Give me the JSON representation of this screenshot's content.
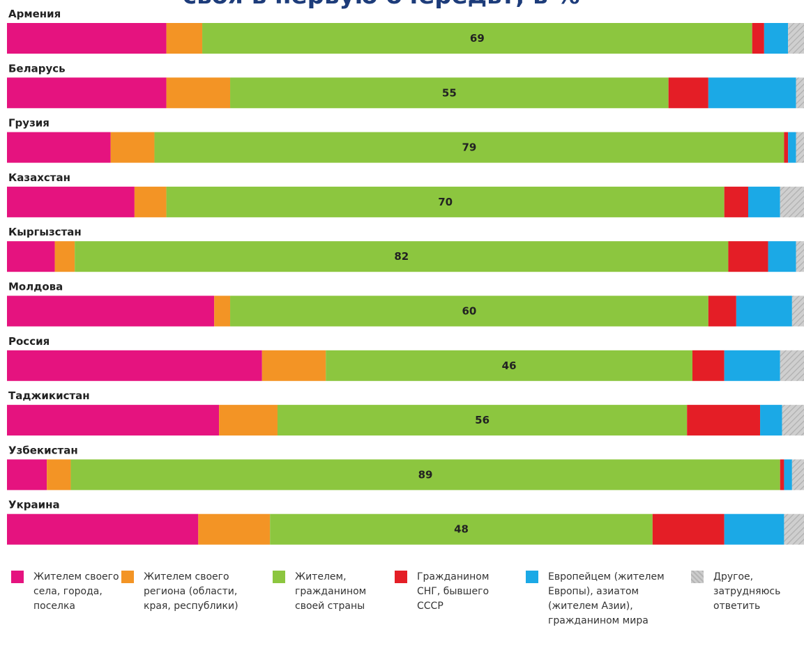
{
  "title": "своя в первую очередь?, в %",
  "chart_data": {
    "type": "bar",
    "orientation": "horizontal",
    "stacked": true,
    "normalized": true,
    "categories": [
      "Армения",
      "Беларусь",
      "Грузия",
      "Казахстан",
      "Кыргызстан",
      "Молдова",
      "Россия",
      "Таджикистан",
      "Узбекистан",
      "Украина"
    ],
    "series": [
      {
        "name": "Жителем своего села, города, поселка",
        "color": "#e5137f",
        "values": [
          20,
          20,
          13,
          16,
          6,
          26,
          32,
          29,
          5,
          24
        ]
      },
      {
        "name": "Жителем своего региона (области, края, республики)",
        "color": "#f39425",
        "values": [
          4.5,
          8,
          5.5,
          4,
          2.5,
          2,
          8,
          8,
          3,
          9
        ]
      },
      {
        "name": "Жителем, гражданином своей страны",
        "color": "#8cc63f",
        "values": [
          69,
          55,
          79,
          70,
          82,
          60,
          46,
          56,
          89,
          48
        ]
      },
      {
        "name": "Гражданином СНГ, бывшего СССР",
        "color": "#e41e26",
        "values": [
          1.5,
          5,
          0.5,
          3,
          5,
          3.5,
          4,
          10,
          0.5,
          9
        ]
      },
      {
        "name": "Европейцем (жителем Европы), азиатом (жителем Азии), гражданином мира",
        "color": "#1ba9e6",
        "values": [
          3,
          11,
          1,
          4,
          3.5,
          7,
          7,
          3,
          1,
          7.5
        ]
      },
      {
        "name": "Другое, затрудняюсь ответить",
        "color": "#c8c8c8",
        "values": [
          2,
          1,
          1,
          3,
          1,
          1.5,
          3,
          3,
          1.5,
          2.5
        ]
      }
    ],
    "data_labels": [
      69,
      55,
      79,
      70,
      82,
      60,
      46,
      56,
      89,
      48
    ],
    "xlim": [
      0,
      100
    ],
    "legend": "bottom"
  }
}
